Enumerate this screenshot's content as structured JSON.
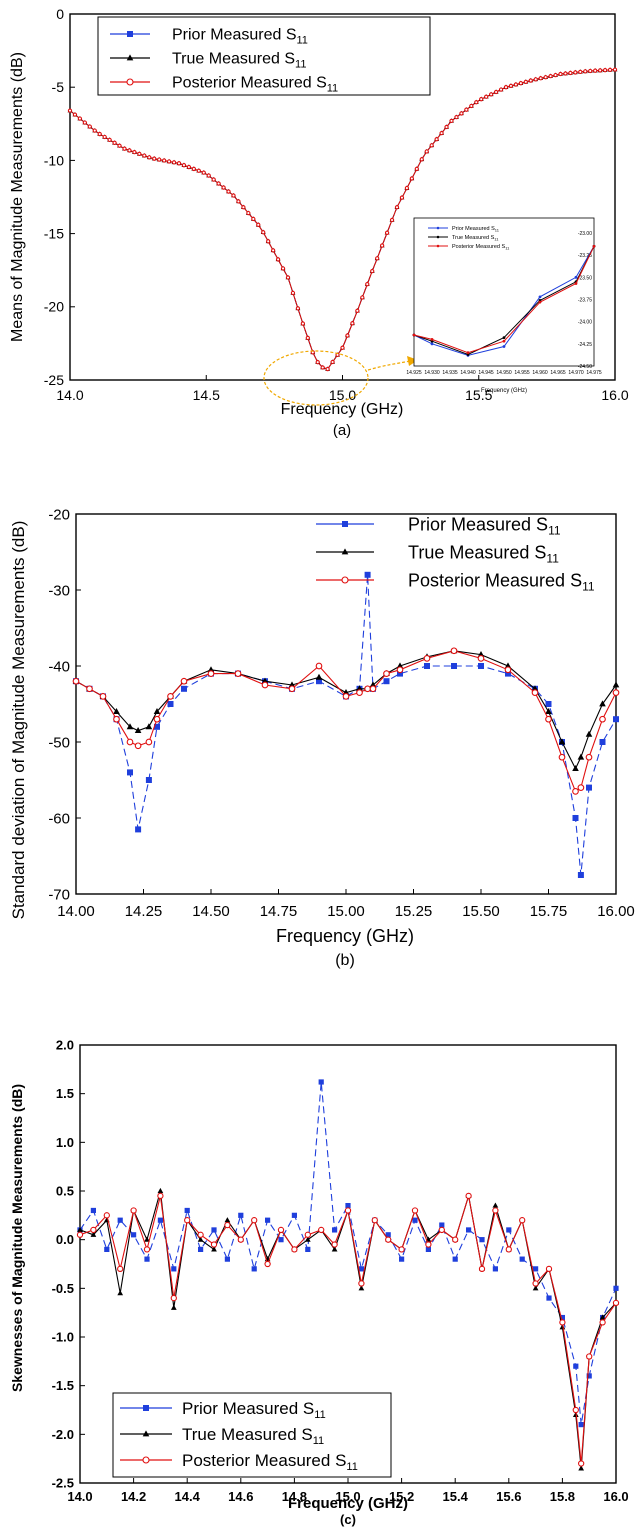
{
  "panels": [
    {
      "caption": "(a)",
      "xlabel": "Frequency (GHz)",
      "ylabel": "Means of Magnitude Measurements (dB)",
      "legend": [
        "Prior Measured S",
        "True Measured S",
        "Posterior Measured S"
      ],
      "legend_sub": "11",
      "xticks": [
        "14.0",
        "14.5",
        "15.0",
        "15.5",
        "16.0"
      ],
      "yticks": [
        "0",
        "-5",
        "-10",
        "-15",
        "-20",
        "-25"
      ],
      "inset": {
        "xlabel": "Frequency (GHz)",
        "xticks": [
          "14.925",
          "14.930",
          "14.935",
          "14.940",
          "14.945",
          "14.950",
          "14.955",
          "14.960",
          "14.965",
          "14.970",
          "14.975"
        ],
        "yticks": [
          "-23.00",
          "-23.25",
          "-23.50",
          "-23.75",
          "-24.00",
          "-24.25",
          "-24.50"
        ]
      }
    },
    {
      "caption": "(b)",
      "xlabel": "Frequency (GHz)",
      "ylabel": "Standard deviation of Magnitude Measurements (dB)",
      "legend": [
        "Prior Measured S",
        "True Measured S",
        "Posterior Measured S"
      ],
      "legend_sub": "11",
      "xticks": [
        "14.00",
        "14.25",
        "14.50",
        "14.75",
        "15.00",
        "15.25",
        "15.50",
        "15.75",
        "16.00"
      ],
      "yticks": [
        "-20",
        "-30",
        "-40",
        "-50",
        "-60",
        "-70"
      ]
    },
    {
      "caption": "(c)",
      "xlabel": "Frequency (GHz)",
      "ylabel": "Skewnesses of Magnitude Measurements (dB)",
      "legend": [
        "Prior Measured S",
        "True Measured S",
        "Posterior Measured S"
      ],
      "legend_sub": "11",
      "xticks": [
        "14.0",
        "14.2",
        "14.4",
        "14.6",
        "14.8",
        "15.0",
        "15.2",
        "15.4",
        "15.6",
        "15.8",
        "16.0"
      ],
      "yticks": [
        "2.0",
        "1.5",
        "1.0",
        "0.5",
        "0.0",
        "-0.5",
        "-1.0",
        "-1.5",
        "-2.0",
        "-2.5"
      ]
    }
  ],
  "colors": {
    "prior": "#1f3fdc",
    "true": "#000000",
    "posterior": "#e01010",
    "arrow": "#f0a800"
  },
  "chart_data": [
    {
      "type": "line",
      "title": "",
      "xlabel": "Frequency (GHz)",
      "ylabel": "Means of Magnitude Measurements (dB)",
      "xlim": [
        14.0,
        16.0
      ],
      "ylim": [
        -25,
        0
      ],
      "grid": false,
      "legend_position": "top-left",
      "x": [
        14.0,
        14.1,
        14.2,
        14.3,
        14.4,
        14.5,
        14.6,
        14.7,
        14.8,
        14.85,
        14.9,
        14.94,
        15.0,
        15.05,
        15.1,
        15.2,
        15.3,
        15.4,
        15.5,
        15.6,
        15.7,
        15.8,
        15.9,
        16.0
      ],
      "series": [
        {
          "name": "Prior Measured S11",
          "values": [
            -6.6,
            -8.1,
            -9.2,
            -9.85,
            -10.2,
            -10.9,
            -12.4,
            -14.6,
            -18.0,
            -20.9,
            -23.6,
            -24.4,
            -22.8,
            -20.5,
            -18.0,
            -13.2,
            -9.6,
            -7.3,
            -5.9,
            -5.0,
            -4.5,
            -4.1,
            -3.9,
            -3.8
          ]
        },
        {
          "name": "True Measured S11",
          "values": [
            -6.6,
            -8.1,
            -9.2,
            -9.85,
            -10.2,
            -10.9,
            -12.4,
            -14.6,
            -18.0,
            -20.9,
            -23.6,
            -24.4,
            -22.8,
            -20.5,
            -18.0,
            -13.2,
            -9.6,
            -7.3,
            -5.9,
            -5.0,
            -4.5,
            -4.1,
            -3.9,
            -3.8
          ]
        },
        {
          "name": "Posterior Measured S11",
          "values": [
            -6.6,
            -8.1,
            -9.2,
            -9.85,
            -10.2,
            -10.9,
            -12.4,
            -14.6,
            -18.0,
            -20.9,
            -23.6,
            -24.4,
            -22.8,
            -20.5,
            -18.0,
            -13.2,
            -9.6,
            -7.3,
            -5.9,
            -5.0,
            -4.5,
            -4.1,
            -3.9,
            -3.8
          ]
        }
      ],
      "inset": {
        "xlim": [
          14.925,
          14.975
        ],
        "ylim": [
          -24.5,
          -23.0
        ],
        "x": [
          14.925,
          14.93,
          14.94,
          14.95,
          14.96,
          14.97,
          14.975
        ],
        "series": [
          {
            "name": "Prior Measured S11",
            "values": [
              -24.15,
              -24.25,
              -24.38,
              -24.28,
              -23.72,
              -23.5,
              -23.15
            ]
          },
          {
            "name": "True Measured S11",
            "values": [
              -24.15,
              -24.22,
              -24.37,
              -24.18,
              -23.76,
              -23.55,
              -23.15
            ]
          },
          {
            "name": "Posterior Measured S11",
            "values": [
              -24.15,
              -24.2,
              -24.35,
              -24.22,
              -23.78,
              -23.57,
              -23.15
            ]
          }
        ]
      }
    },
    {
      "type": "line",
      "title": "",
      "xlabel": "Frequency (GHz)",
      "ylabel": "Standard deviation of Magnitude Measurements (dB)",
      "xlim": [
        14.0,
        16.0
      ],
      "ylim": [
        -70,
        -20
      ],
      "grid": false,
      "legend_position": "top-right",
      "x": [
        14.0,
        14.05,
        14.1,
        14.15,
        14.2,
        14.23,
        14.27,
        14.3,
        14.35,
        14.4,
        14.5,
        14.6,
        14.7,
        14.8,
        14.9,
        15.0,
        15.05,
        15.08,
        15.1,
        15.15,
        15.2,
        15.3,
        15.4,
        15.5,
        15.6,
        15.7,
        15.75,
        15.8,
        15.85,
        15.87,
        15.9,
        15.95,
        16.0
      ],
      "series": [
        {
          "name": "Prior Measured S11",
          "values": [
            -42,
            -43,
            -44,
            -47,
            -54,
            -61.5,
            -55,
            -48,
            -45,
            -43,
            -41,
            -41,
            -42,
            -43,
            -42,
            -44,
            -43,
            -28,
            -43,
            -42,
            -41,
            -40,
            -40,
            -40,
            -41,
            -43,
            -45,
            -50,
            -60,
            -67.5,
            -56,
            -50,
            -47
          ]
        },
        {
          "name": "True Measured S11",
          "values": [
            -42,
            -43,
            -44,
            -46,
            -48,
            -48.5,
            -48,
            -46,
            -44,
            -42,
            -40.5,
            -41,
            -42,
            -42.5,
            -41.5,
            -43.5,
            -43,
            -43,
            -42.5,
            -41,
            -40,
            -38.8,
            -38,
            -38.5,
            -40,
            -43,
            -46,
            -50,
            -53.5,
            -52,
            -49,
            -45,
            -42.5
          ]
        },
        {
          "name": "Posterior Measured S11",
          "values": [
            -42,
            -43,
            -44,
            -47,
            -50,
            -50.5,
            -50,
            -47,
            -44,
            -42,
            -41,
            -41,
            -42.5,
            -43,
            -40,
            -44,
            -43.5,
            -43,
            -43,
            -41,
            -40.5,
            -39,
            -38,
            -39,
            -40.5,
            -43.5,
            -47,
            -52,
            -56.5,
            -56,
            -52,
            -47,
            -43.5
          ]
        }
      ]
    },
    {
      "type": "line",
      "title": "",
      "xlabel": "Frequency (GHz)",
      "ylabel": "Skewnesses of Magnitude Measurements (dB)",
      "xlim": [
        14.0,
        16.0
      ],
      "ylim": [
        -2.5,
        2.0
      ],
      "grid": false,
      "legend_position": "bottom-left",
      "x": [
        14.0,
        14.05,
        14.1,
        14.15,
        14.2,
        14.25,
        14.3,
        14.35,
        14.4,
        14.45,
        14.5,
        14.55,
        14.6,
        14.65,
        14.7,
        14.75,
        14.8,
        14.85,
        14.9,
        14.95,
        15.0,
        15.05,
        15.1,
        15.15,
        15.2,
        15.25,
        15.3,
        15.35,
        15.4,
        15.45,
        15.5,
        15.55,
        15.6,
        15.65,
        15.7,
        15.75,
        15.8,
        15.85,
        15.87,
        15.9,
        15.95,
        16.0
      ],
      "series": [
        {
          "name": "Prior Measured S11",
          "values": [
            0.1,
            0.3,
            -0.1,
            0.2,
            0.05,
            -0.2,
            0.2,
            -0.3,
            0.3,
            -0.1,
            0.1,
            -0.2,
            0.25,
            -0.3,
            0.2,
            0.0,
            0.25,
            -0.1,
            1.62,
            0.1,
            0.35,
            -0.3,
            0.2,
            0.05,
            -0.2,
            0.2,
            -0.1,
            0.15,
            -0.2,
            0.1,
            0.0,
            -0.3,
            0.1,
            -0.2,
            -0.3,
            -0.6,
            -0.8,
            -1.3,
            -1.9,
            -1.4,
            -0.8,
            -0.5
          ]
        },
        {
          "name": "True Measured S11",
          "values": [
            0.1,
            0.05,
            0.2,
            -0.55,
            0.3,
            0.0,
            0.5,
            -0.7,
            0.2,
            0.0,
            -0.1,
            0.2,
            0.0,
            0.2,
            -0.2,
            0.1,
            -0.1,
            0.0,
            0.1,
            -0.1,
            0.3,
            -0.5,
            0.2,
            0.0,
            -0.1,
            0.3,
            0.0,
            0.1,
            0.0,
            0.45,
            -0.3,
            0.35,
            -0.1,
            0.2,
            -0.5,
            -0.3,
            -0.9,
            -1.8,
            -2.35,
            -1.2,
            -0.8,
            -0.65
          ]
        },
        {
          "name": "Posterior Measured S11",
          "values": [
            0.05,
            0.1,
            0.25,
            -0.3,
            0.3,
            -0.1,
            0.45,
            -0.6,
            0.2,
            0.05,
            -0.05,
            0.15,
            0.0,
            0.2,
            -0.25,
            0.1,
            -0.1,
            0.05,
            0.1,
            -0.05,
            0.3,
            -0.45,
            0.2,
            0.0,
            -0.1,
            0.3,
            -0.05,
            0.1,
            0.0,
            0.45,
            -0.3,
            0.3,
            -0.1,
            0.2,
            -0.45,
            -0.3,
            -0.85,
            -1.75,
            -2.3,
            -1.2,
            -0.85,
            -0.65
          ]
        }
      ]
    }
  ]
}
